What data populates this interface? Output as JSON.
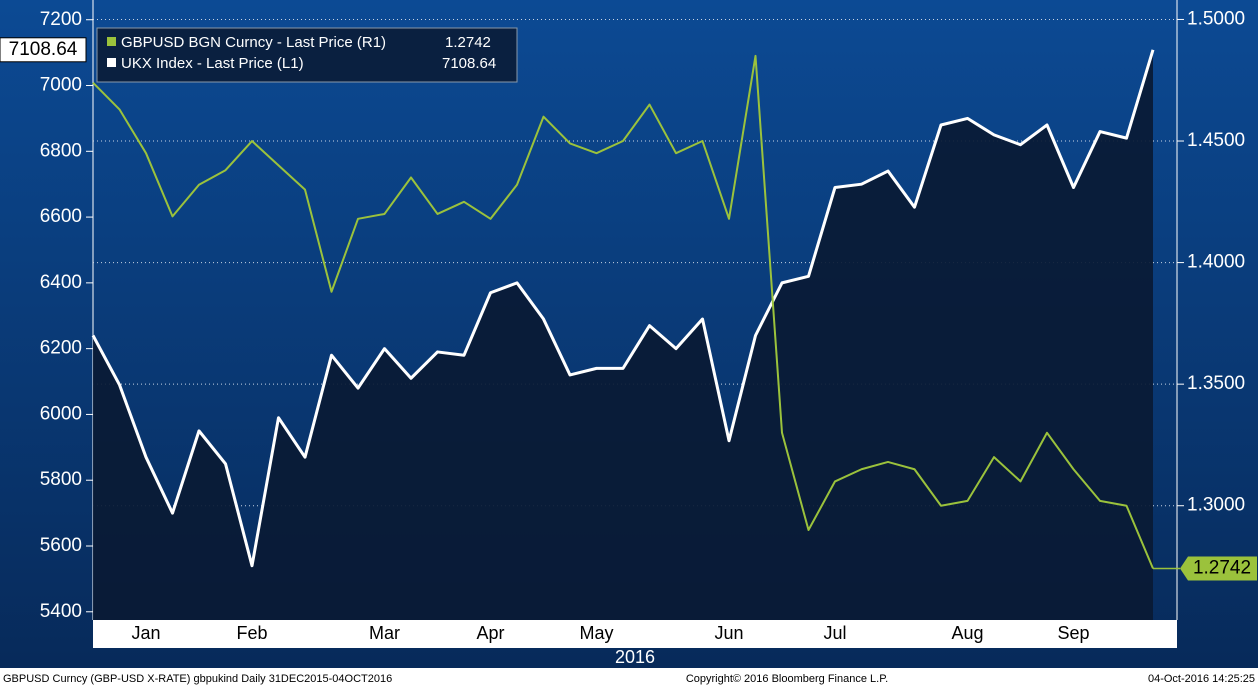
{
  "chart_data": {
    "type": "line",
    "categories": [
      null,
      null,
      "Jan",
      null,
      null,
      null,
      "Feb",
      null,
      null,
      null,
      null,
      "Mar",
      null,
      null,
      null,
      "Apr",
      null,
      null,
      null,
      "May",
      null,
      null,
      null,
      null,
      "Jun",
      null,
      null,
      null,
      "Jul",
      null,
      null,
      null,
      null,
      "Aug",
      null,
      null,
      null,
      "Sep",
      null,
      null,
      null
    ],
    "xlabel": "2016",
    "series": [
      {
        "name": "GBPUSD BGN Curncy - Last Price (R1)",
        "color": "#9bc23c",
        "axis": "y2",
        "values": [
          1.474,
          1.463,
          1.445,
          1.419,
          1.432,
          1.438,
          1.45,
          1.44,
          1.43,
          1.388,
          1.418,
          1.42,
          1.435,
          1.42,
          1.425,
          1.418,
          1.432,
          1.46,
          1.449,
          1.445,
          1.45,
          1.465,
          1.445,
          1.45,
          1.418,
          1.485,
          1.33,
          1.29,
          1.31,
          1.315,
          1.318,
          1.315,
          1.3,
          1.302,
          1.32,
          1.31,
          1.33,
          1.315,
          1.302,
          1.3,
          1.2742
        ],
        "value_labels": [
          null,
          null,
          null,
          null,
          null,
          null,
          null,
          null,
          null,
          null,
          null,
          null,
          null,
          null,
          null,
          null,
          null,
          null,
          null,
          null,
          null,
          null,
          null,
          null,
          null,
          null,
          null,
          null,
          null,
          null,
          null,
          null,
          null,
          null,
          null,
          null,
          null,
          null,
          null,
          null,
          "1.2742"
        ]
      },
      {
        "name": "UKX Index - Last Price (L1)",
        "color": "#ffffff",
        "values": [
          6240,
          6090,
          5870,
          5700,
          5950,
          5850,
          5540,
          5990,
          5870,
          6180,
          6080,
          6200,
          6110,
          6190,
          6180,
          6370,
          6400,
          6290,
          6120,
          6140,
          6140,
          6270,
          6200,
          6290,
          5920,
          6240,
          6400,
          6420,
          6690,
          6700,
          6740,
          6630,
          6880,
          6900,
          6850,
          6820,
          6880,
          6690,
          6860,
          6840,
          7108.64
        ],
        "value_labels": [
          null,
          null,
          null,
          null,
          null,
          null,
          null,
          null,
          null,
          null,
          null,
          null,
          null,
          null,
          null,
          null,
          null,
          null,
          null,
          null,
          null,
          null,
          null,
          null,
          null,
          null,
          null,
          null,
          null,
          null,
          null,
          null,
          null,
          null,
          null,
          null,
          null,
          null,
          null,
          null,
          "7108.64"
        ]
      }
    ],
    "ylim": [
      5375,
      7260
    ],
    "yticks": [
      5400,
      5600,
      5800,
      6000,
      6200,
      6400,
      6600,
      6800,
      7000,
      7200
    ],
    "y2lim": [
      1.253,
      1.508
    ],
    "y2ticks": [
      {
        "value": 1.3,
        "label": "1.3000"
      },
      {
        "value": 1.35,
        "label": "1.3500"
      },
      {
        "value": 1.4,
        "label": "1.4000"
      },
      {
        "value": 1.45,
        "label": "1.4500"
      },
      {
        "value": 1.5,
        "label": "1.5000"
      }
    ],
    "footer_left": "GBPUSD Curncy (GBP-USD X-RATE) gbpukind  Daily 31DEC2015-04OCT2016",
    "footer_center": "Copyright© 2016 Bloomberg Finance L.P.",
    "footer_right": "04-Oct-2016 14:25:25"
  }
}
